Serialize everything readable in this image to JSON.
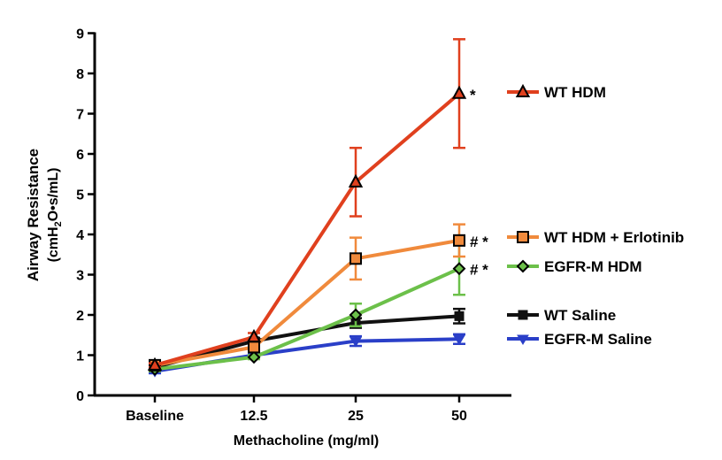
{
  "chart_data": {
    "type": "line",
    "categories": [
      "Baseline",
      "12.5",
      "25",
      "50"
    ],
    "xlabel": "Methacholine (mg/ml)",
    "ylabel_main": "Airway Resistance",
    "ylabel_unit": "(cmH2O•s/mL)",
    "ylim": [
      0,
      9
    ],
    "yticks": [
      "0",
      "1",
      "2",
      "3",
      "4",
      "5",
      "6",
      "7",
      "8",
      "9"
    ],
    "grid": false,
    "legend_position": "right",
    "series": [
      {
        "name": "WT HDM",
        "color": "#e0401e",
        "marker": "triangle-up",
        "values": [
          0.75,
          1.45,
          5.3,
          7.5
        ],
        "errors": [
          0.05,
          0.1,
          0.85,
          1.35
        ],
        "annotation": "*"
      },
      {
        "name": "WT HDM + Erlotinib",
        "color": "#f08a3c",
        "marker": "square",
        "values": [
          0.75,
          1.2,
          3.4,
          3.85
        ],
        "errors": [
          0.05,
          0.1,
          0.52,
          0.4
        ],
        "annotation": "# *"
      },
      {
        "name": "EGFR-M HDM",
        "color": "#6cc04a",
        "marker": "diamond",
        "values": [
          0.65,
          0.95,
          2.0,
          3.15
        ],
        "errors": [
          0.05,
          0.05,
          0.28,
          0.65
        ],
        "annotation": "# *"
      },
      {
        "name": "WT Saline",
        "color": "#111111",
        "marker": "square-filled",
        "values": [
          0.7,
          1.35,
          1.8,
          1.97
        ],
        "errors": [
          0.05,
          0.08,
          0.12,
          0.18
        ],
        "annotation": ""
      },
      {
        "name": "EGFR-M Saline",
        "color": "#2a3fc8",
        "marker": "triangle-down",
        "values": [
          0.6,
          1.0,
          1.35,
          1.4
        ],
        "errors": [
          0.05,
          0.05,
          0.12,
          0.12
        ],
        "annotation": ""
      }
    ]
  }
}
